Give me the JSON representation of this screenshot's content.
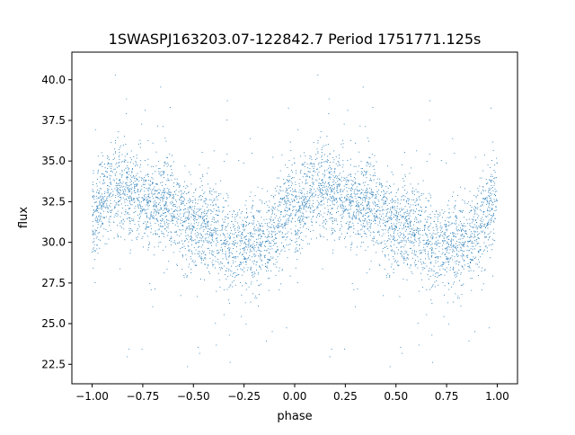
{
  "chart_data": {
    "type": "scatter",
    "title": "1SWASPJ163203.07-122842.7 Period 1751771.125s",
    "xlabel": "phase",
    "ylabel": "flux",
    "xlim": [
      -1.1,
      1.1
    ],
    "ylim": [
      21.3,
      41.7
    ],
    "x_ticks": [
      -1.0,
      -0.75,
      -0.5,
      -0.25,
      0.0,
      0.25,
      0.5,
      0.75,
      1.0
    ],
    "x_tick_labels": [
      "−1.00",
      "−0.75",
      "−0.50",
      "−0.25",
      "0.00",
      "0.25",
      "0.50",
      "0.75",
      "1.00"
    ],
    "y_ticks": [
      22.5,
      25.0,
      27.5,
      30.0,
      32.5,
      35.0,
      37.5,
      40.0
    ],
    "y_tick_labels": [
      "22.5",
      "25.0",
      "27.5",
      "30.0",
      "32.5",
      "35.0",
      "37.5",
      "40.0"
    ],
    "grid": false,
    "point_color": "#1f77b4",
    "series": [
      {
        "phase_range": [
          -1.0,
          1.0
        ],
        "phase_folded_twice": true,
        "trend": {
          "x": [
            0.0,
            0.05,
            0.1,
            0.15,
            0.2,
            0.25,
            0.3,
            0.35,
            0.4,
            0.45,
            0.5,
            0.55,
            0.6,
            0.65,
            0.7,
            0.75,
            0.8,
            0.85,
            0.9,
            0.95,
            1.0
          ],
          "y": [
            31.5,
            32.5,
            33.3,
            33.3,
            33.0,
            32.6,
            32.3,
            32.5,
            32.0,
            31.3,
            30.7,
            30.7,
            30.8,
            30.3,
            29.7,
            29.5,
            29.6,
            30.0,
            30.4,
            31.8,
            33.0
          ]
        },
        "scatter_spread": 1.4,
        "outlier_range": [
          22.3,
          40.7
        ]
      }
    ]
  }
}
